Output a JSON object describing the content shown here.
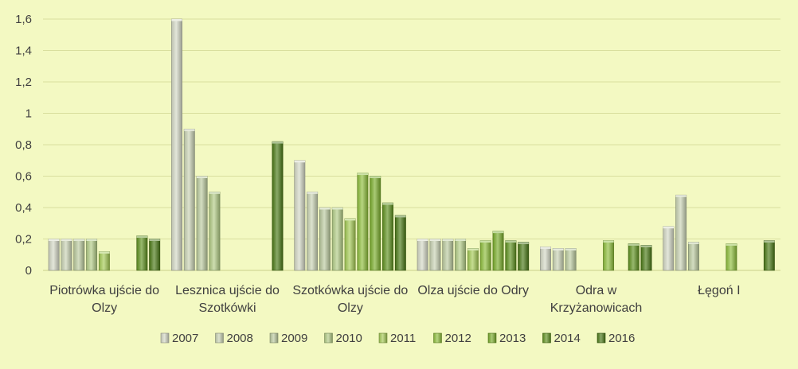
{
  "chart_data": {
    "type": "bar",
    "title": "",
    "xlabel": "",
    "ylabel": "",
    "ylim": [
      0,
      1.6
    ],
    "yticks": [
      "0",
      "0,2",
      "0,4",
      "0,6",
      "0,8",
      "1",
      "1,2",
      "1,4",
      "1,6"
    ],
    "grid": true,
    "legend_position": "bottom",
    "categories": [
      [
        "Piotrówka ujście do",
        "Olzy"
      ],
      [
        "Lesznica ujście do",
        "Szotkówki"
      ],
      [
        "Szotkówka ujście do",
        "Olzy"
      ],
      [
        "Olza ujście do Odry"
      ],
      [
        "Odra w",
        "Krzyżanowicach"
      ],
      [
        "Łęgoń I"
      ]
    ],
    "series": [
      {
        "name": "2007",
        "color": "#d4d9c6",
        "values": [
          0.2,
          1.6,
          0.7,
          0.2,
          0.15,
          0.28
        ]
      },
      {
        "name": "2008",
        "color": "#c9d3b4",
        "values": [
          0.2,
          0.9,
          0.5,
          0.2,
          0.14,
          0.48
        ]
      },
      {
        "name": "2009",
        "color": "#bccb9f",
        "values": [
          0.2,
          0.6,
          0.4,
          0.2,
          0.14,
          0.18
        ]
      },
      {
        "name": "2010",
        "color": "#b2cc86",
        "values": [
          0.2,
          0.5,
          0.4,
          0.2,
          null,
          null
        ]
      },
      {
        "name": "2011",
        "color": "#a5cb55",
        "values": [
          0.12,
          null,
          0.33,
          0.14,
          null,
          null
        ]
      },
      {
        "name": "2012",
        "color": "#8ebf3b",
        "values": [
          null,
          null,
          0.62,
          0.19,
          0.19,
          0.17
        ]
      },
      {
        "name": "2013",
        "color": "#7aae2b",
        "values": [
          null,
          null,
          0.6,
          0.25,
          null,
          null
        ]
      },
      {
        "name": "2014",
        "color": "#5f921f",
        "values": [
          0.22,
          null,
          0.43,
          0.19,
          0.17,
          null
        ]
      },
      {
        "name": "2016",
        "color": "#4b7a16",
        "values": [
          0.2,
          0.82,
          0.35,
          0.18,
          0.16,
          0.19
        ]
      }
    ]
  }
}
